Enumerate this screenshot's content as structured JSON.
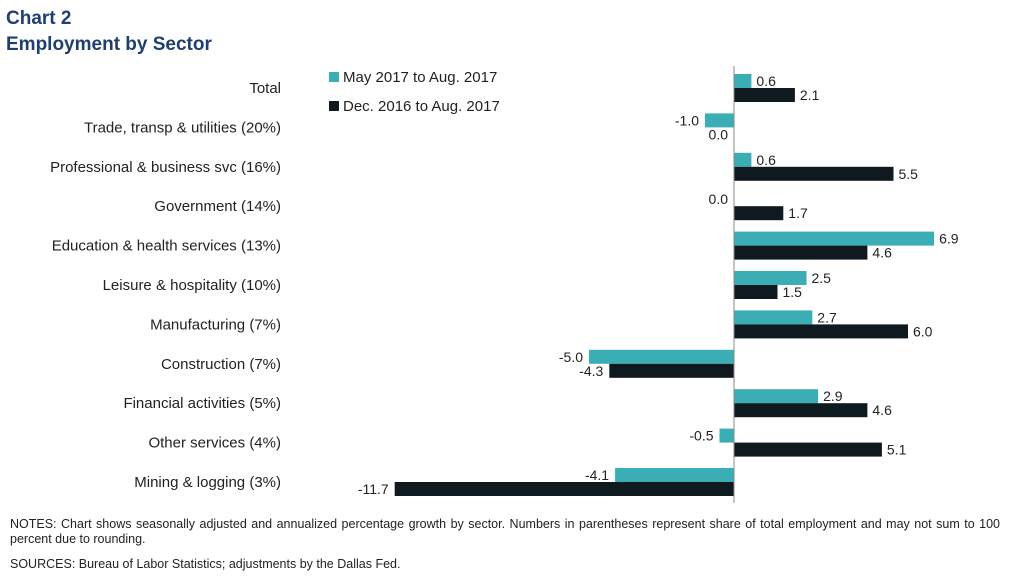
{
  "header": {
    "chart_number": "Chart 2",
    "title": "Employment  by Sector"
  },
  "footer": {
    "notes": "NOTES:  Chart shows seasonally adjusted and annualized percentage growth  by sector. Numbers  in parentheses represent share of total employment  and may not sum to 100 percent due to rounding.",
    "sources": "SOURCES:  Bureau of Labor Statistics;  adjustments by the Dallas Fed."
  },
  "colors": {
    "series1": "#3aadb5",
    "series2": "#0e1a1f",
    "title": "#1f3f6e"
  },
  "chart_data": {
    "type": "bar",
    "orientation": "horizontal",
    "title": "Employment  by Sector",
    "categories": [
      "Total",
      "Trade, transp & utilities (20%)",
      "Professional & business svc (16%)",
      "Government (14%)",
      "Education & health services (13%)",
      "Leisure & hospitality (10%)",
      "Manufacturing (7%)",
      "Construction (7%)",
      "Financial activities (5%)",
      "Other services (4%)",
      "Mining & logging (3%)"
    ],
    "series": [
      {
        "name": "May 2017 to Aug. 2017",
        "color": "#3aadb5",
        "values": [
          0.6,
          -1.0,
          0.6,
          0.0,
          6.9,
          2.5,
          2.7,
          -5.0,
          2.9,
          -0.5,
          -4.1
        ],
        "labels": [
          "0.6",
          "-1.0",
          "0.6",
          "0.0",
          "6.9",
          "2.5",
          "2.7",
          "-5.0",
          "2.9",
          "-0.5",
          "-4.1"
        ]
      },
      {
        "name": "Dec. 2016 to Aug. 2017",
        "color": "#0e1a1f",
        "values": [
          2.1,
          0.0,
          5.5,
          1.7,
          4.6,
          1.5,
          6.0,
          -4.3,
          4.6,
          5.1,
          -11.7
        ],
        "labels": [
          "2.1",
          "0.0",
          "5.5",
          "1.7",
          "4.6",
          "1.5",
          "6.0",
          "-4.3",
          "4.6",
          "5.1",
          "-11.7"
        ]
      }
    ],
    "xlim": [
      -11.7,
      6.9
    ],
    "grid": false,
    "legend_position": "top-left"
  }
}
